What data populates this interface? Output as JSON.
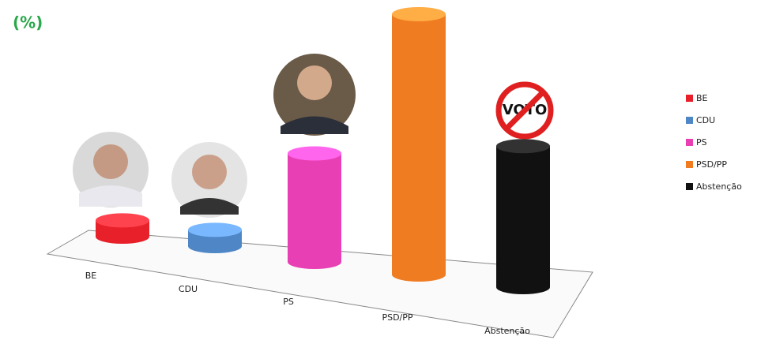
{
  "chart_data": {
    "type": "bar3d",
    "title": "(%)",
    "categories": [
      "BE",
      "CDU",
      "PS",
      "PSD/PP",
      "Abstenção"
    ],
    "series": [
      {
        "name": "BE",
        "color": "#e8202a",
        "values": [
          3,
          null,
          null,
          null,
          null
        ]
      },
      {
        "name": "CDU",
        "color": "#4f86c6",
        "values": [
          null,
          3,
          null,
          null,
          null
        ]
      },
      {
        "name": "PS",
        "color": "#e83fb4",
        "values": [
          null,
          null,
          20,
          null,
          null
        ]
      },
      {
        "name": "PSD/PP",
        "color": "#f07c22",
        "values": [
          null,
          null,
          null,
          48,
          null
        ]
      },
      {
        "name": "Abstenção",
        "color": "#111111",
        "values": [
          null,
          null,
          null,
          null,
          26
        ]
      }
    ],
    "annotation": "VOTO"
  }
}
